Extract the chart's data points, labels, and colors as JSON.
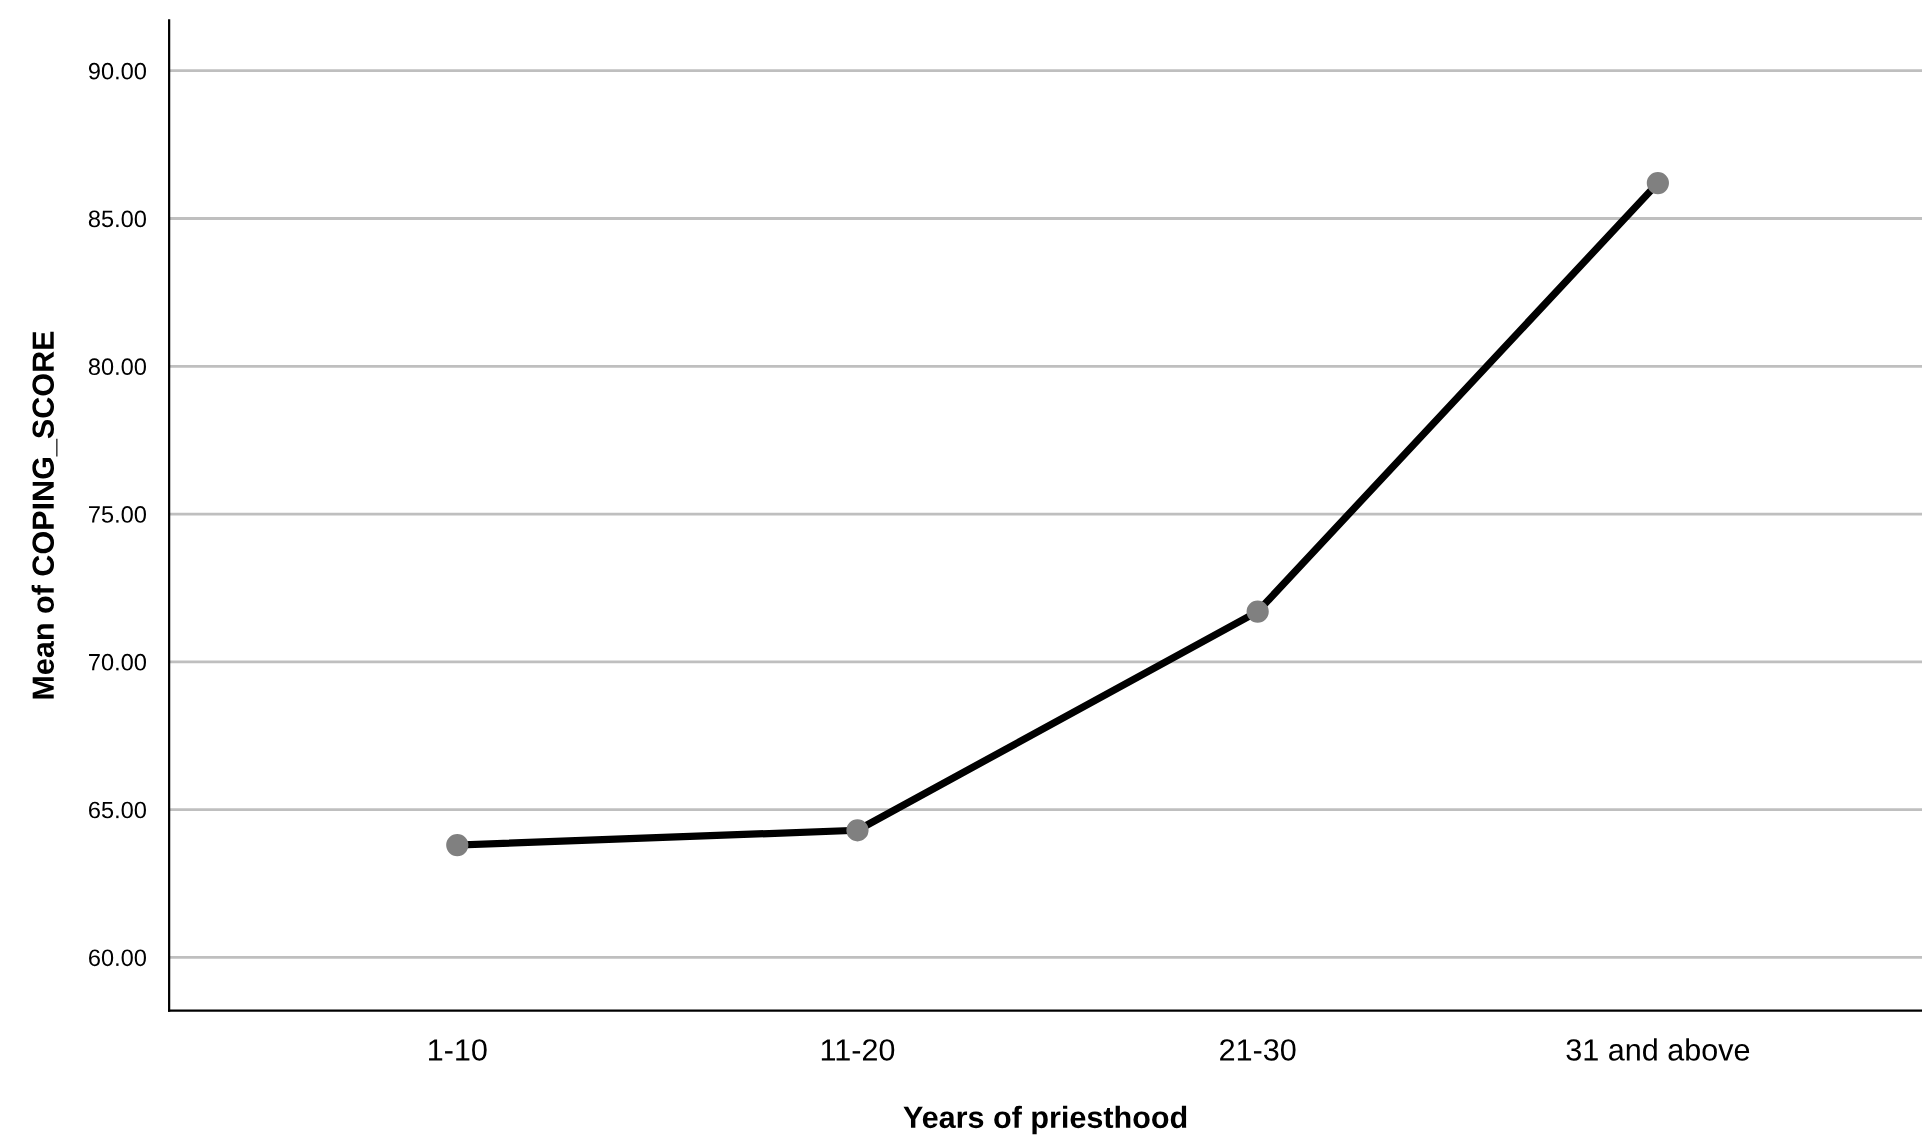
{
  "chart_data": {
    "type": "line",
    "xlabel": "Years of priesthood",
    "ylabel": "Mean of COPING_SCORE",
    "categories": [
      "1-10",
      "11-20",
      "21-30",
      "31 and above"
    ],
    "series": [
      {
        "color": "#000000",
        "values": [
          63.8,
          64.3,
          71.7,
          86.2
        ]
      }
    ],
    "ylim": [
      58.2,
      91.7
    ],
    "yticks": [
      {
        "value": 60,
        "label": "60.00"
      },
      {
        "value": 65,
        "label": "65.00"
      },
      {
        "value": 70,
        "label": "70.00"
      },
      {
        "value": 75,
        "label": "75.00"
      },
      {
        "value": 80,
        "label": "80.00"
      },
      {
        "value": 85,
        "label": "85.00"
      },
      {
        "value": 90,
        "label": "90.00"
      }
    ],
    "grid": "y",
    "marker": "circle",
    "line_style": "solid"
  }
}
